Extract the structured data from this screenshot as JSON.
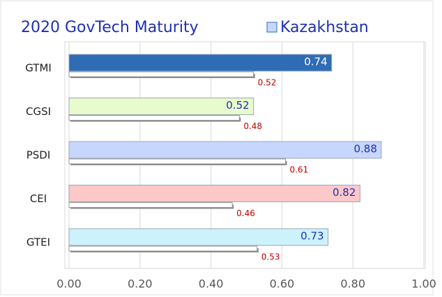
{
  "chart_data": {
    "type": "hbar",
    "title": "2020 GovTech Maturity",
    "categories": [
      "GTMI",
      "CGSI",
      "PSDI",
      "CEI",
      "GTEI"
    ],
    "series": [
      {
        "name": "Kazakhstan",
        "color": "#2e6cb5",
        "colors": [
          "#2e6cb5",
          "#e8fbcc",
          "#c6d6fc",
          "#fcc8c8",
          "#ccf2fc"
        ],
        "values": [
          0.74,
          0.52,
          0.88,
          0.82,
          0.73
        ]
      },
      {
        "color": "#ffffff",
        "values": [
          0.52,
          0.48,
          0.61,
          0.46,
          0.53
        ]
      }
    ],
    "xlim": [
      0,
      1
    ],
    "xticks": [
      {
        "value": 0,
        "label": "0.00"
      },
      {
        "value": 0.2,
        "label": "0.20"
      },
      {
        "value": 0.4,
        "label": "0.40"
      },
      {
        "value": 0.6,
        "label": "0.60"
      },
      {
        "value": 0.8,
        "label": "0.80"
      },
      {
        "value": 1,
        "label": "1.00"
      }
    ],
    "grid": true
  }
}
